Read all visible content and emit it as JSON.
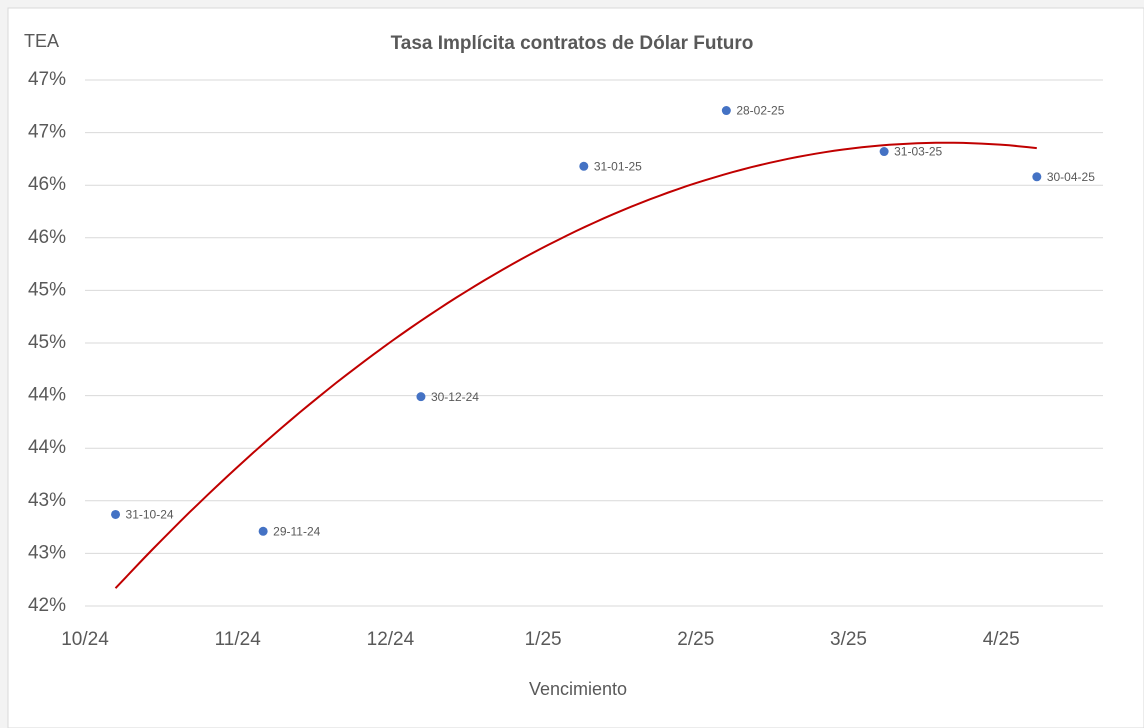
{
  "chart_data": {
    "type": "scatter",
    "title": "Tasa Implícita contratos de Dólar Futuro",
    "y_label": "TEA",
    "x_label": "Vencimiento",
    "x": [
      "2024-10-31",
      "2024-11-29",
      "2024-12-30",
      "2025-01-31",
      "2025-02-28",
      "2025-03-31",
      "2025-04-30"
    ],
    "point_labels": [
      "31-10-24",
      "29-11-24",
      "30-12-24",
      "31-01-25",
      "28-02-25",
      "31-03-25",
      "30-04-25"
    ],
    "series": [
      {
        "name": "TEA",
        "color": "#4472c4",
        "values": [
          42.87,
          42.71,
          43.99,
          46.18,
          46.71,
          46.32,
          46.08
        ]
      }
    ],
    "trendline": {
      "type": "polynomial",
      "order": 2,
      "color": "#c00000"
    },
    "xlim": [
      "2024-10-25",
      "2025-05-13"
    ],
    "xticks": [
      {
        "value": "2024-10-25",
        "label": "10/24"
      },
      {
        "value": "2024-11-24",
        "label": "11/24"
      },
      {
        "value": "2024-12-24",
        "label": "12/24"
      },
      {
        "value": "2025-01-23",
        "label": "1/25"
      },
      {
        "value": "2025-02-22",
        "label": "2/25"
      },
      {
        "value": "2025-03-24",
        "label": "3/25"
      },
      {
        "value": "2025-04-23",
        "label": "4/25"
      }
    ],
    "ylim": [
      42,
      47
    ],
    "yticks": [
      {
        "value": 42,
        "label": "42%"
      },
      {
        "value": 42.5,
        "label": "43%"
      },
      {
        "value": 43,
        "label": "43%"
      },
      {
        "value": 43.5,
        "label": "44%"
      },
      {
        "value": 44,
        "label": "44%"
      },
      {
        "value": 44.5,
        "label": "45%"
      },
      {
        "value": 45,
        "label": "45%"
      },
      {
        "value": 45.5,
        "label": "46%"
      },
      {
        "value": 46,
        "label": "46%"
      },
      {
        "value": 46.5,
        "label": "47%"
      },
      {
        "value": 47,
        "label": "47%"
      }
    ],
    "grid": true
  }
}
